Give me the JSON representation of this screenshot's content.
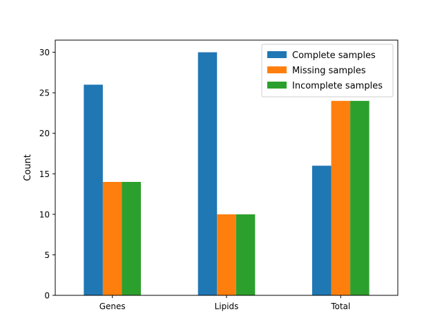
{
  "chart_data": {
    "type": "bar",
    "title": "",
    "xlabel": "",
    "ylabel": "Count",
    "categories": [
      "Genes",
      "Lipids",
      "Total"
    ],
    "series": [
      {
        "name": "Complete samples",
        "color": "#1f77b4",
        "values": [
          26,
          30,
          16
        ]
      },
      {
        "name": "Missing samples",
        "color": "#ff7f0e",
        "values": [
          14,
          10,
          24
        ]
      },
      {
        "name": "Incomplete samples",
        "color": "#2ca02c",
        "values": [
          14,
          10,
          24
        ]
      }
    ],
    "ylim": [
      0,
      31.5
    ],
    "yticks": [
      "0",
      "5",
      "10",
      "15",
      "20",
      "25",
      "30"
    ],
    "ytick_values": [
      0,
      5,
      10,
      15,
      20,
      25,
      30
    ],
    "grid": false,
    "legend_position": "top-right"
  }
}
